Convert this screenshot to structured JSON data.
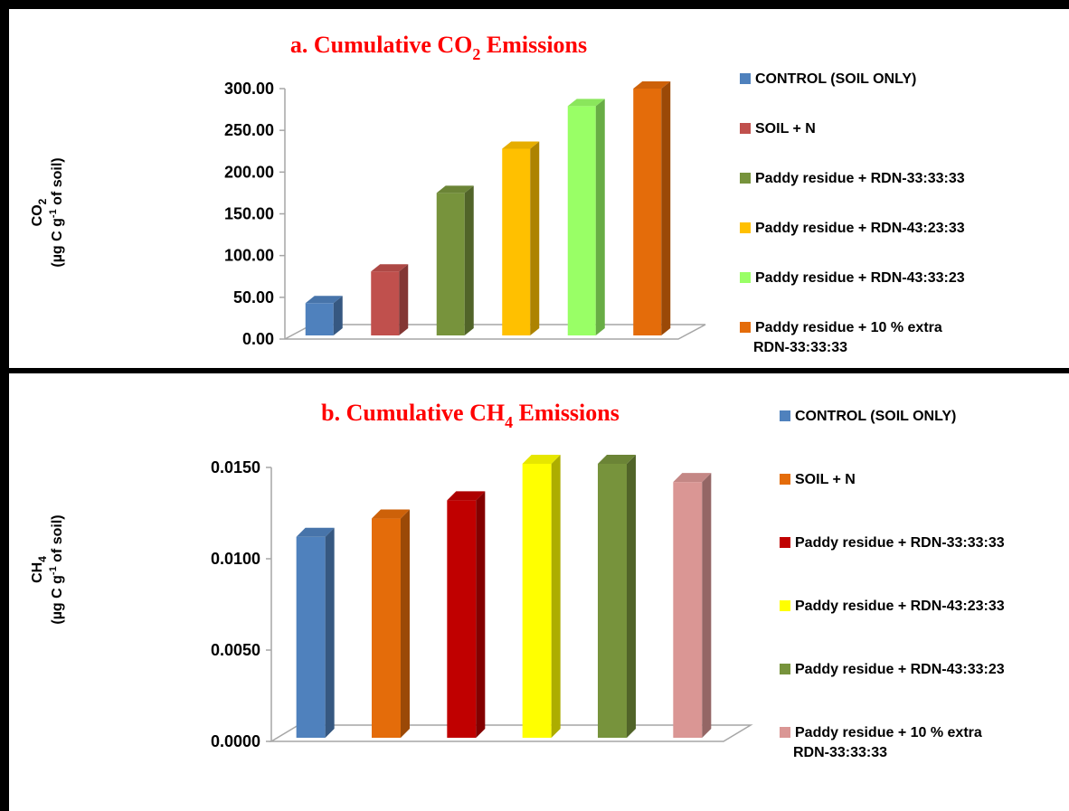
{
  "chart_data": [
    {
      "type": "bar",
      "title_prefix": "a. Cumulative CO",
      "title_sub": "2",
      "title_suffix": " Emissions",
      "ylabel_line1_main": "CO",
      "ylabel_line1_sub": "2",
      "ylabel_line2_pre": "(µg C g",
      "ylabel_line2_sup": "-1",
      "ylabel_line2_post": " of soil)",
      "ylim": [
        0,
        300
      ],
      "yticks": [
        "0.00",
        "50.00",
        "100.00",
        "150.00",
        "200.00",
        "250.00",
        "300.00"
      ],
      "series": [
        {
          "name": "CONTROL (SOIL ONLY)",
          "value": 43,
          "color": "#4f81bd"
        },
        {
          "name": "SOIL + N",
          "value": 81,
          "color": "#c0504d"
        },
        {
          "name": "Paddy residue + RDN-33:33:33",
          "value": 175,
          "color": "#77933c"
        },
        {
          "name": "Paddy residue + RDN-43:23:33",
          "value": 228,
          "color": "#ffc000"
        },
        {
          "name": "Paddy residue + RDN-43:33:23",
          "value": 279,
          "color": "#99ff66"
        },
        {
          "name": "Paddy residue + 10 % extra RDN-33:33:33",
          "value": 300,
          "color": "#e46c0a"
        }
      ],
      "legend_position": "right"
    },
    {
      "type": "bar",
      "title_prefix": "b. Cumulative CH",
      "title_sub": "4",
      "title_suffix": " Emissions",
      "ylabel_line1_main": "CH",
      "ylabel_line1_sub": "4",
      "ylabel_line2_pre": "(µg C g",
      "ylabel_line2_sup": "-1",
      "ylabel_line2_post": " of soil)",
      "ylim": [
        0,
        0.015
      ],
      "yticks": [
        "0.0000",
        "0.0050",
        "0.0100",
        "0.0150"
      ],
      "series": [
        {
          "name": "CONTROL (SOIL ONLY)",
          "value": 0.0112,
          "color": "#4f81bd"
        },
        {
          "name": "SOIL + N",
          "value": 0.0122,
          "color": "#e46c0a"
        },
        {
          "name": "Paddy residue + RDN-33:33:33",
          "value": 0.0132,
          "color": "#c00000"
        },
        {
          "name": "Paddy residue + RDN-43:23:33",
          "value": 0.0152,
          "color": "#ffff00"
        },
        {
          "name": "Paddy residue + RDN-43:33:23",
          "value": 0.0152,
          "color": "#77933c"
        },
        {
          "name": "Paddy residue + 10 % extra RDN-33:33:33",
          "value": 0.0142,
          "color": "#da9694"
        }
      ],
      "legend_position": "right"
    }
  ]
}
